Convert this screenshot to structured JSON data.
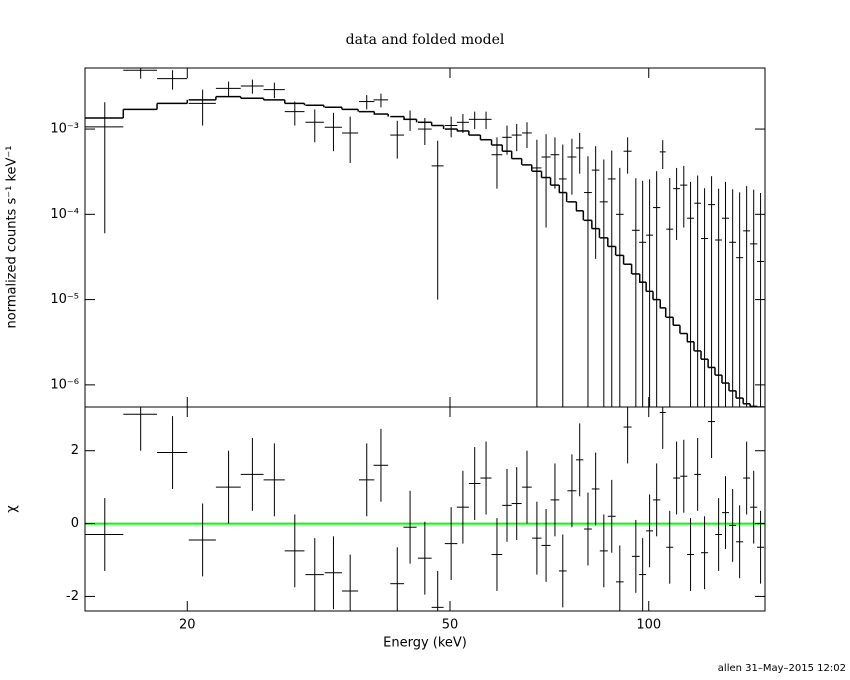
{
  "chart_data": [
    {
      "type": "errorbar",
      "title": "data and folded model",
      "ylabel": "normalized counts s⁻¹ keV⁻¹",
      "log_x": true,
      "log_y": true,
      "xlim": [
        14,
        150
      ],
      "ylim": [
        5.5e-07,
        0.0052
      ],
      "yticks": [
        {
          "value": 1e-06,
          "label": "10⁻⁶"
        },
        {
          "value": 1e-05,
          "label": "10⁻⁵"
        },
        {
          "value": 0.0001,
          "label": "10⁻⁴"
        },
        {
          "value": 0.001,
          "label": "10⁻³"
        }
      ],
      "color": "#000000",
      "x": [
        15.0,
        17.0,
        19.0,
        21.1,
        23.1,
        25.1,
        27.1,
        29.1,
        31.2,
        33.3,
        35.3,
        37.4,
        39.3,
        41.6,
        43.5,
        45.8,
        47.9,
        50.2,
        52.3,
        54.5,
        56.7,
        58.9,
        61.0,
        63.1,
        65.4,
        67.7,
        69.9,
        72.1,
        74.1,
        76.5,
        78.6,
        80.9,
        83.1,
        85.5,
        87.9,
        90.4,
        92.9,
        95.6,
        97.9,
        100.3,
        102.8,
        105.0,
        107.6,
        110.2,
        113.0,
        115.7,
        118.6,
        121.5,
        124.5,
        127.6,
        130.7,
        134.0,
        137.3,
        140.7,
        144.2,
        147.7
      ],
      "xerr": [
        1,
        1,
        1,
        1,
        1,
        1,
        1,
        1,
        1,
        1,
        1,
        1,
        1,
        1,
        1,
        1.1,
        1,
        1.1,
        1.1,
        1.1,
        1.1,
        1.1,
        1,
        1.1,
        1.1,
        1.1,
        1.1,
        1.1,
        1,
        1.2,
        1,
        1.1,
        1.1,
        1.2,
        1.2,
        1.2,
        1.3,
        1.3,
        1.2,
        1.2,
        1.3,
        1.1,
        1.3,
        1.3,
        1.4,
        1.4,
        1.4,
        1.5,
        1.5,
        1.5,
        1.6,
        1.6,
        1.7,
        1.7,
        1.8,
        1.8
      ],
      "values": [
        0.00106,
        0.0049,
        0.0039,
        0.002,
        0.003,
        0.0032,
        0.0029,
        0.0016,
        0.0012,
        0.00105,
        0.0009,
        0.0021,
        0.0022,
        0.00085,
        0.0013,
        0.001,
        0.00037,
        0.0011,
        0.0012,
        0.0013,
        0.0013,
        0.0005,
        0.0008,
        0.00085,
        0.0009,
        0.00035,
        0.00047,
        0.0005,
        0.00026,
        0.00047,
        0.0006,
        0.00018,
        0.00033,
        0.00014,
        0.00026,
        0.0001,
        0.00055,
        6.5e-05,
        4.7e-05,
        5.7e-05,
        0.00012,
        0.00054,
        6.7e-05,
        0.0002,
        0.00022,
        9e-05,
        0.000135,
        5.2e-05,
        0.00013,
        5e-05,
        9e-05,
        4.7e-05,
        3.1e-05,
        6.4e-05,
        4.5e-05,
        2.8e-05
      ],
      "yerr": [
        0.001,
        0.001,
        0.001,
        0.0009,
        0.0006,
        0.0006,
        0.0006,
        0.0005,
        0.0005,
        0.0005,
        0.0005,
        0.0004,
        0.0004,
        0.0004,
        0.00035,
        0.00035,
        0.00036,
        0.0003,
        0.0003,
        0.0003,
        0.0003,
        0.0003,
        0.0003,
        0.0003,
        0.0003,
        0.0004,
        0.0004,
        0.0003,
        0.0004,
        0.0003,
        0.0003,
        0.0003,
        0.0003,
        0.0003,
        0.0003,
        0.00025,
        0.00025,
        0.0002,
        0.0002,
        0.0002,
        0.0002,
        0.0002,
        0.0002,
        0.00015,
        0.00015,
        0.00015,
        0.00015,
        0.00015,
        0.00015,
        0.00015,
        0.00015,
        0.00015,
        0.00015,
        0.00015,
        0.00015,
        0.00015
      ],
      "model": {
        "color": "#000000",
        "values": [
          0.00135,
          0.0017,
          0.002,
          0.0022,
          0.0024,
          0.0023,
          0.0022,
          0.002,
          0.0019,
          0.0018,
          0.0017,
          0.0016,
          0.0015,
          0.0014,
          0.0013,
          0.0012,
          0.0011,
          0.001,
          0.00095,
          0.00085,
          0.00075,
          0.00065,
          0.00055,
          0.00045,
          0.00038,
          0.00032,
          0.00027,
          0.00022,
          0.00018,
          0.00014,
          0.00011,
          8.5e-05,
          6.8e-05,
          5.3e-05,
          4.2e-05,
          3.3e-05,
          2.6e-05,
          2e-05,
          1.6e-05,
          1.25e-05,
          1e-05,
          8e-06,
          6.2e-06,
          5e-06,
          4e-06,
          3.2e-06,
          2.5e-06,
          2e-06,
          1.6e-06,
          1.3e-06,
          1.05e-06,
          8.5e-07,
          7e-07,
          6e-07,
          5.6e-07,
          5.5e-07
        ]
      }
    },
    {
      "type": "residual",
      "xlabel": "Energy (keV)",
      "ylabel": "χ",
      "log_x": true,
      "xlim": [
        14,
        150
      ],
      "xticks": [
        20,
        50,
        100
      ],
      "ylim": [
        -2.4,
        3.2
      ],
      "yticks": [
        -2,
        0,
        2
      ],
      "color": "#000000",
      "zero_line": {
        "value": 0,
        "color": "#00ff00"
      },
      "values": [
        -0.3,
        3.0,
        1.95,
        -0.45,
        1.0,
        1.35,
        1.2,
        -0.75,
        -1.4,
        -1.35,
        -1.85,
        1.2,
        1.6,
        -1.65,
        -0.1,
        -0.95,
        -2.3,
        -0.55,
        0.45,
        1.1,
        1.25,
        -0.85,
        0.5,
        0.55,
        1.0,
        -0.4,
        -0.6,
        0.65,
        -1.3,
        0.9,
        1.75,
        -0.15,
        0.95,
        -0.75,
        0.2,
        -1.6,
        2.65,
        -0.9,
        -1.4,
        -0.2,
        0.65,
        3.05,
        -0.65,
        1.25,
        1.3,
        -0.85,
        1.35,
        -0.8,
        2.8,
        -0.3,
        0.3,
        -0.05,
        -0.5,
        1.25,
        0.45,
        -0.65
      ],
      "yerr": [
        1,
        1,
        1,
        1,
        1,
        1,
        1,
        1,
        1,
        1,
        1,
        1,
        1,
        1,
        1,
        1,
        1,
        1,
        1,
        1,
        1,
        1,
        1,
        1,
        1,
        1,
        1,
        1,
        1,
        1,
        1,
        1,
        1,
        1,
        1,
        1,
        1,
        1,
        1,
        1,
        1,
        1,
        1,
        1,
        1,
        1,
        1,
        1,
        1,
        1,
        1,
        1,
        1,
        1,
        1,
        1
      ]
    }
  ],
  "footer": "allen 31–May–2015 12:02"
}
